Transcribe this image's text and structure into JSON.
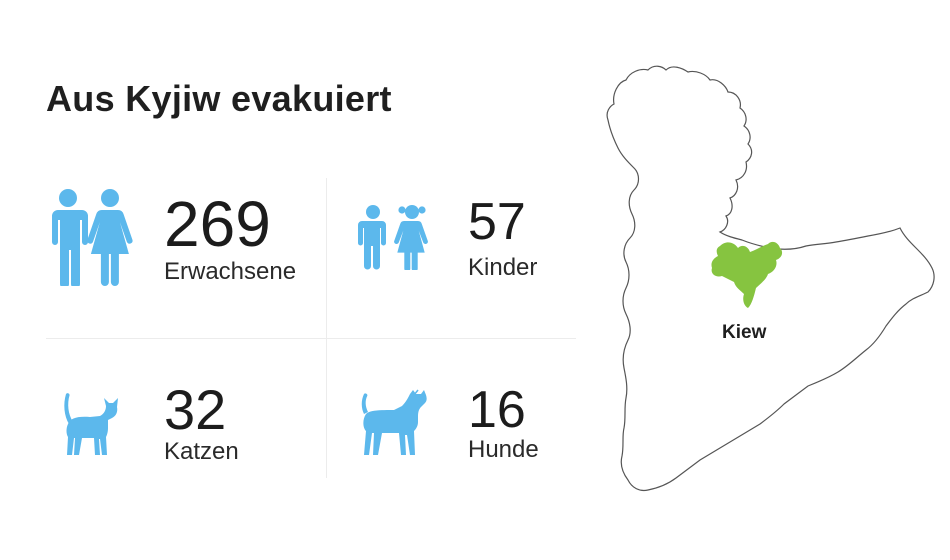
{
  "title": "Aus Kyjiw evakuiert",
  "stats": [
    {
      "value": "269",
      "label": "Erwachsene",
      "icon": "adults-icon"
    },
    {
      "value": "57",
      "label": "Kinder",
      "icon": "children-icon"
    },
    {
      "value": "32",
      "label": "Katzen",
      "icon": "cat-icon"
    },
    {
      "value": "16",
      "label": "Hunde",
      "icon": "dog-icon"
    }
  ],
  "map": {
    "city_label": "Kiew",
    "city_color": "#86c440",
    "region_outline_color": "#555555"
  },
  "colors": {
    "icon_blue": "#5cb8ec"
  }
}
